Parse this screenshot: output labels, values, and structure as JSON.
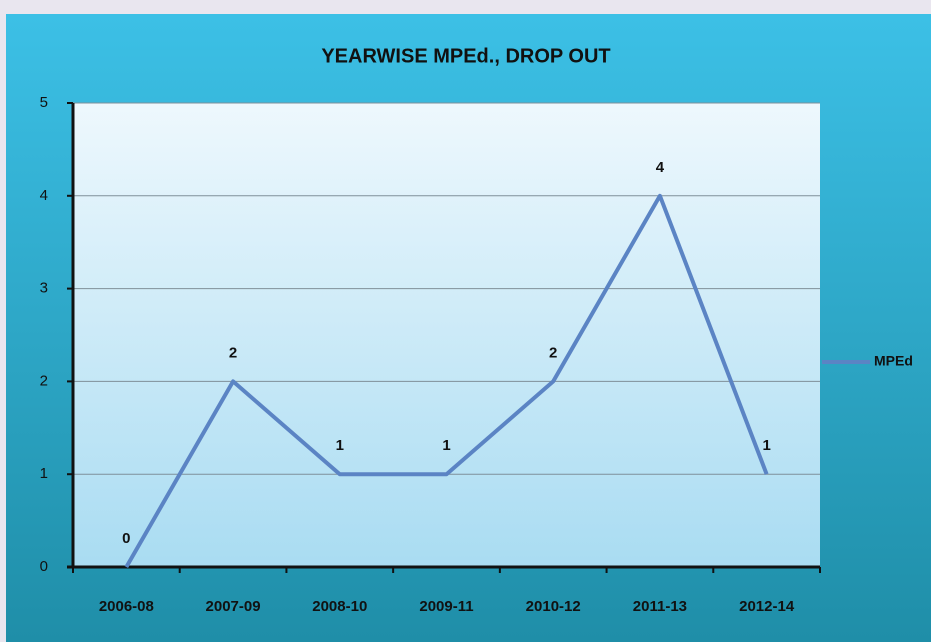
{
  "chart_data": {
    "type": "line",
    "title": "YEARWISE MPEd., DROP OUT",
    "categories": [
      "2006-08",
      "2007-09",
      "2008-10",
      "2009-11",
      "2010-12",
      "2011-13",
      "2012-14"
    ],
    "series": [
      {
        "name": "MPEd",
        "color": "#5b84c4",
        "values": [
          0,
          2,
          1,
          1,
          2,
          4,
          1
        ]
      }
    ],
    "ylim": [
      0,
      5
    ],
    "yticks": [
      0,
      1,
      2,
      3,
      4,
      5
    ],
    "grid": true,
    "legend": "right"
  }
}
